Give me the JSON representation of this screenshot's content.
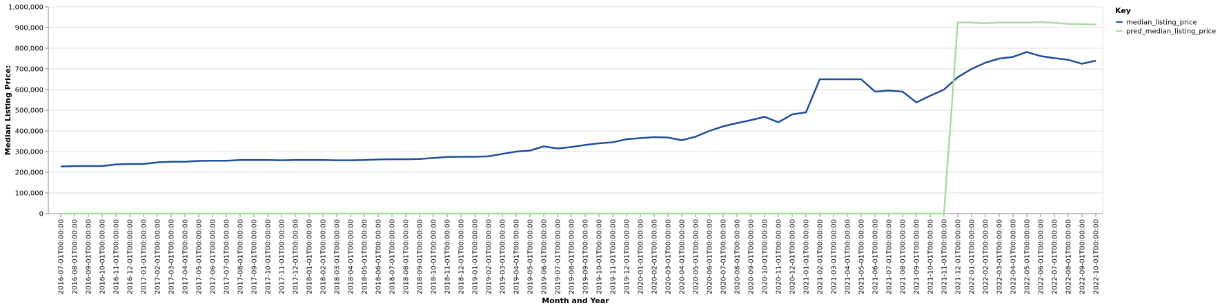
{
  "chart_data": {
    "type": "line",
    "title": "",
    "xlabel": "Month and Year",
    "ylabel": "Median Listing Price:",
    "ylim": [
      0,
      1000000
    ],
    "y_ticks": [
      0,
      100000,
      200000,
      300000,
      400000,
      500000,
      600000,
      700000,
      800000,
      900000,
      1000000
    ],
    "y_tick_labels": [
      "0",
      "100,000",
      "200,000",
      "300,000",
      "400,000",
      "500,000",
      "600,000",
      "700,000",
      "800,000",
      "900,000",
      "1,000,000"
    ],
    "grid": true,
    "legend": {
      "title": "Key",
      "placement": "top-right outside",
      "entries": [
        "median_listing_price",
        "pred_median_listing_price"
      ]
    },
    "categories": [
      "2016-07-01T00:00:00",
      "2016-08-01T00:00:00",
      "2016-09-01T00:00:00",
      "2016-10-01T00:00:00",
      "2016-11-01T00:00:00",
      "2016-12-01T00:00:00",
      "2017-01-01T00:00:00",
      "2017-02-01T00:00:00",
      "2017-03-01T00:00:00",
      "2017-04-01T00:00:00",
      "2017-05-01T00:00:00",
      "2017-06-01T00:00:00",
      "2017-07-01T00:00:00",
      "2017-08-01T00:00:00",
      "2017-09-01T00:00:00",
      "2017-10-01T00:00:00",
      "2017-11-01T00:00:00",
      "2017-12-01T00:00:00",
      "2018-01-01T00:00:00",
      "2018-02-01T00:00:00",
      "2018-03-01T00:00:00",
      "2018-04-01T00:00:00",
      "2018-05-01T00:00:00",
      "2018-06-01T00:00:00",
      "2018-07-01T00:00:00",
      "2018-08-01T00:00:00",
      "2018-09-01T00:00:00",
      "2018-10-01T00:00:00",
      "2018-11-01T00:00:00",
      "2018-12-01T00:00:00",
      "2019-01-01T00:00:00",
      "2019-02-01T00:00:00",
      "2019-03-01T00:00:00",
      "2019-04-01T00:00:00",
      "2019-05-01T00:00:00",
      "2019-06-01T00:00:00",
      "2019-07-01T00:00:00",
      "2019-08-01T00:00:00",
      "2019-09-01T00:00:00",
      "2019-10-01T00:00:00",
      "2019-11-01T00:00:00",
      "2019-12-01T00:00:00",
      "2020-01-01T00:00:00",
      "2020-02-01T00:00:00",
      "2020-03-01T00:00:00",
      "2020-04-01T00:00:00",
      "2020-05-01T00:00:00",
      "2020-06-01T00:00:00",
      "2020-07-01T00:00:00",
      "2020-08-01T00:00:00",
      "2020-09-01T00:00:00",
      "2020-10-01T00:00:00",
      "2020-11-01T00:00:00",
      "2020-12-01T00:00:00",
      "2021-01-01T00:00:00",
      "2021-02-01T00:00:00",
      "2021-03-01T00:00:00",
      "2021-04-01T00:00:00",
      "2021-05-01T00:00:00",
      "2021-06-01T00:00:00",
      "2021-07-01T00:00:00",
      "2021-08-01T00:00:00",
      "2021-09-01T00:00:00",
      "2021-10-01T00:00:00",
      "2021-11-01T00:00:00",
      "2021-12-01T00:00:00",
      "2022-01-01T00:00:00",
      "2022-02-01T00:00:00",
      "2022-03-01T00:00:00",
      "2022-04-01T00:00:00",
      "2022-05-01T00:00:00",
      "2022-06-01T00:00:00",
      "2022-07-01T00:00:00",
      "2022-08-01T00:00:00",
      "2022-09-01T00:00:00",
      "2022-10-01T00:00:00"
    ],
    "series": [
      {
        "name": "median_listing_price",
        "color": "#1f4e9b",
        "values": [
          228000,
          230000,
          230000,
          230000,
          238000,
          240000,
          240000,
          248000,
          251000,
          251000,
          255000,
          256000,
          256000,
          259000,
          259000,
          259000,
          258000,
          259000,
          259000,
          259000,
          258000,
          258000,
          259000,
          262000,
          263000,
          263000,
          264000,
          269000,
          274000,
          275000,
          275000,
          277000,
          289000,
          300000,
          305000,
          325000,
          315000,
          322000,
          332000,
          340000,
          345000,
          360000,
          365000,
          370000,
          368000,
          355000,
          372000,
          400000,
          422000,
          438000,
          452000,
          468000,
          442000,
          480000,
          490000,
          650000,
          650000,
          650000,
          650000,
          590000,
          595000,
          590000,
          538000,
          570000,
          600000,
          660000,
          700000,
          730000,
          750000,
          758000,
          782000,
          762000,
          752000,
          744000,
          725000,
          740000
        ]
      },
      {
        "name": "pred_median_listing_price",
        "color": "#a6dba0",
        "values": [
          0,
          0,
          0,
          0,
          0,
          0,
          0,
          0,
          0,
          0,
          0,
          0,
          0,
          0,
          0,
          0,
          0,
          0,
          0,
          0,
          0,
          0,
          0,
          0,
          0,
          0,
          0,
          0,
          0,
          0,
          0,
          0,
          0,
          0,
          0,
          0,
          0,
          0,
          0,
          0,
          0,
          0,
          0,
          0,
          0,
          0,
          0,
          0,
          0,
          0,
          0,
          0,
          0,
          0,
          0,
          0,
          0,
          0,
          0,
          0,
          0,
          0,
          0,
          0,
          0,
          925000,
          924000,
          921000,
          924000,
          924000,
          924000,
          926000,
          923000,
          918000,
          916000,
          915000
        ]
      }
    ]
  }
}
